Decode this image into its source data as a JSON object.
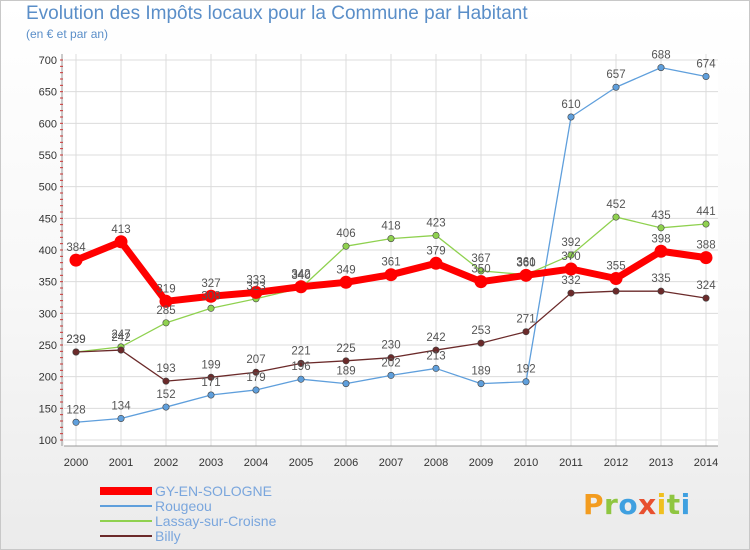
{
  "header": {
    "title": "Evolution des Impôts locaux pour la Commune par Habitant",
    "subtitle": "(en € et par an)"
  },
  "logo": {
    "letters": [
      "P",
      "r",
      "o",
      "x",
      "i",
      "t",
      "i"
    ]
  },
  "chart_data": {
    "type": "line",
    "title": "Evolution des Impôts locaux pour la Commune par Habitant",
    "subtitle": "(en € et par an)",
    "xlabel": "",
    "ylabel": "",
    "x": [
      "2000",
      "2001",
      "2002",
      "2003",
      "2004",
      "2005",
      "2006",
      "2007",
      "2008",
      "2009",
      "2010",
      "2011",
      "2012",
      "2013",
      "2014"
    ],
    "ylim": [
      100,
      700
    ],
    "yticks": [
      100,
      150,
      200,
      250,
      300,
      350,
      400,
      450,
      500,
      550,
      600,
      650,
      700
    ],
    "grid": true,
    "legend_position": "bottom-left",
    "series": [
      {
        "name": "GY-EN-SOLOGNE",
        "color": "#ff0000",
        "values": [
          384,
          413,
          319,
          327,
          333,
          342,
          349,
          361,
          379,
          350,
          360,
          370,
          355,
          398,
          388
        ],
        "labels": [
          "384",
          "413",
          "319",
          "327",
          "333",
          "342",
          "349",
          "361",
          "379",
          "350",
          "360",
          "370",
          "355",
          "398",
          "388"
        ]
      },
      {
        "name": "Rougeou",
        "color": "#5f9fdc",
        "values": [
          128,
          134,
          152,
          171,
          179,
          196,
          189,
          202,
          213,
          189,
          192,
          610,
          657,
          688,
          674
        ],
        "labels": [
          "128",
          "134",
          "152",
          "171",
          "179",
          "196",
          "189",
          "202",
          "213",
          "189",
          "192",
          "610",
          "657",
          "688",
          "674"
        ]
      },
      {
        "name": "Lassay-sur-Croisne",
        "color": "#8fd14f",
        "values": [
          239,
          247,
          285,
          308,
          323,
          340,
          406,
          418,
          423,
          367,
          361,
          392,
          452,
          435,
          441
        ],
        "labels": [
          "239",
          "247",
          "285",
          "308",
          "323",
          "340",
          "406",
          "418",
          "423",
          "367",
          "361",
          "392",
          "452",
          "435",
          "441"
        ]
      },
      {
        "name": "Billy",
        "color": "#6b2a2a",
        "values": [
          239,
          242,
          193,
          199,
          207,
          221,
          225,
          230,
          242,
          253,
          271,
          332,
          335,
          335,
          324
        ],
        "labels": [
          "239",
          "242",
          "193",
          "199",
          "207",
          "221",
          "225",
          "230",
          "242",
          "253",
          "271",
          "332",
          "",
          "335",
          "324"
        ]
      }
    ]
  }
}
